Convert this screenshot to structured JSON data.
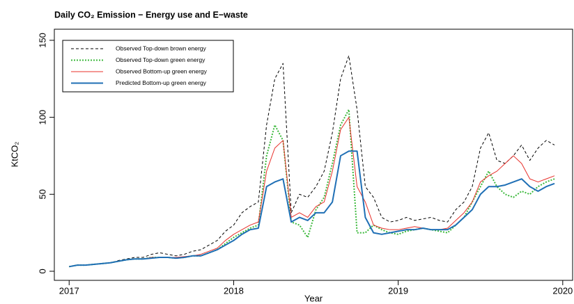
{
  "chart_data": {
    "type": "line",
    "title": "Daily CO₂ Emission − Energy use and E−waste",
    "xlabel": "Year",
    "ylabel": "KtCO₂",
    "x": [
      2017.0,
      2017.05,
      2017.1,
      2017.15,
      2017.2,
      2017.25,
      2017.3,
      2017.35,
      2017.4,
      2017.45,
      2017.5,
      2017.55,
      2017.6,
      2017.65,
      2017.7,
      2017.75,
      2017.8,
      2017.85,
      2017.9,
      2017.95,
      2018.0,
      2018.05,
      2018.1,
      2018.15,
      2018.2,
      2018.25,
      2018.3,
      2018.35,
      2018.4,
      2018.45,
      2018.5,
      2018.55,
      2018.6,
      2018.65,
      2018.7,
      2018.75,
      2018.8,
      2018.85,
      2018.9,
      2018.95,
      2019.0,
      2019.05,
      2019.1,
      2019.15,
      2019.2,
      2019.25,
      2019.3,
      2019.35,
      2019.4,
      2019.45,
      2019.5,
      2019.55,
      2019.6,
      2019.65,
      2019.7,
      2019.75,
      2019.8,
      2019.85,
      2019.9,
      2019.95
    ],
    "series": [
      {
        "name": "Observed Top-down brown  energy",
        "color": "#000000",
        "dash": "dashed",
        "linewidth": 1,
        "values": [
          3,
          4,
          4,
          4.5,
          5,
          5.5,
          7,
          8,
          9,
          9,
          11,
          12,
          11,
          10,
          11,
          13,
          14,
          17,
          20,
          26,
          30,
          38,
          42,
          45,
          95,
          125,
          135,
          38,
          50,
          48,
          55,
          65,
          90,
          125,
          140,
          105,
          55,
          48,
          35,
          32,
          33,
          35,
          33,
          34,
          35,
          33,
          32,
          40,
          45,
          55,
          80,
          90,
          72,
          70,
          75,
          82,
          72,
          80,
          85,
          82
        ]
      },
      {
        "name": "Observed Top-down green energy",
        "color": "#3cb93c",
        "dash": "dotted",
        "linewidth": 2,
        "values": [
          3,
          4,
          4,
          4.5,
          5,
          5.5,
          6.5,
          7.5,
          8,
          8,
          9,
          9,
          9,
          8.5,
          9,
          10,
          10,
          12,
          14,
          18,
          22,
          25,
          28,
          30,
          75,
          95,
          85,
          32,
          30,
          22,
          40,
          48,
          70,
          95,
          105,
          25,
          25,
          30,
          27,
          25,
          24,
          26,
          27,
          28,
          27,
          26,
          25,
          30,
          35,
          45,
          55,
          65,
          55,
          50,
          48,
          52,
          50,
          55,
          58,
          60
        ]
      },
      {
        "name": "Observed Bottom-up green energy",
        "color": "#e8302a",
        "dash": "solid",
        "linewidth": 1,
        "values": [
          3,
          4,
          4,
          4.5,
          5,
          5.5,
          6.5,
          7.5,
          8,
          8,
          9,
          9,
          9,
          9,
          9.5,
          10,
          11,
          13,
          15,
          20,
          24,
          27,
          30,
          32,
          65,
          80,
          85,
          35,
          38,
          35,
          42,
          45,
          65,
          92,
          100,
          55,
          45,
          30,
          28,
          27,
          27,
          28,
          29,
          28,
          27,
          27,
          28,
          33,
          38,
          45,
          58,
          62,
          65,
          70,
          75,
          70,
          60,
          58,
          60,
          62
        ]
      },
      {
        "name": "Predicted Bottom-up green energy",
        "color": "#1f6fb5",
        "dash": "solid",
        "linewidth": 2,
        "values": [
          3,
          4,
          4,
          4.5,
          5,
          5.5,
          6.5,
          7.5,
          8,
          8,
          8.5,
          9,
          9,
          8.5,
          9,
          10,
          10,
          12,
          14,
          17,
          20,
          24,
          27,
          28,
          55,
          58,
          60,
          32,
          35,
          33,
          38,
          38,
          45,
          75,
          78,
          78,
          35,
          25,
          24,
          25,
          26,
          27,
          27,
          28,
          27,
          27,
          27,
          30,
          35,
          40,
          50,
          55,
          55,
          56,
          58,
          60,
          55,
          52,
          55,
          57
        ]
      }
    ],
    "xlim": [
      2016.91,
      2020.06
    ],
    "xticks": [
      2017,
      2018,
      2019,
      2020
    ],
    "ylim": [
      -5.9,
      157.2
    ],
    "yticks": [
      0,
      50,
      100,
      150
    ],
    "grid": false,
    "legend": "topleft"
  }
}
